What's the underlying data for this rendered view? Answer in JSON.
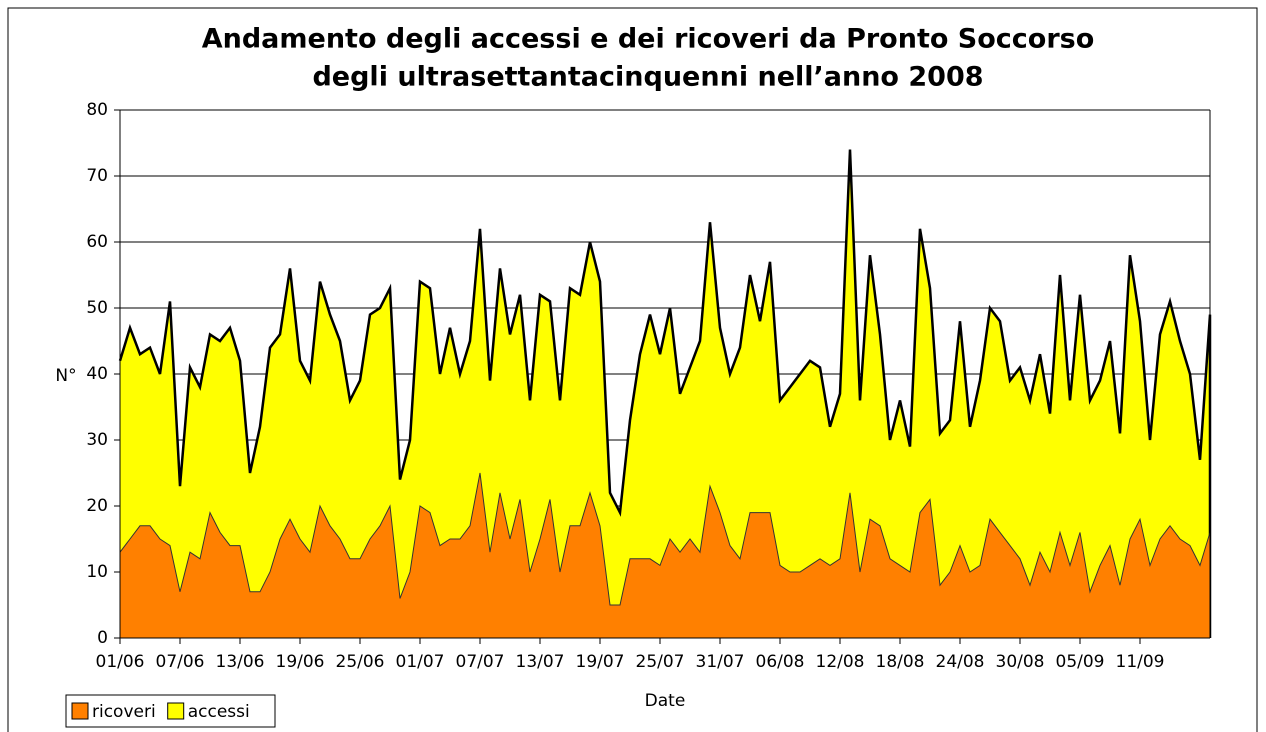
{
  "chart_data": {
    "type": "area",
    "title": "Andamento degli accessi e dei ricoveri da Pronto Soccorso",
    "subtitle": "degli ultrasettantacinquenni nell’anno 2008",
    "x_label": "Date",
    "y_label": "N°",
    "categories": [
      "01/06",
      null,
      null,
      null,
      null,
      null,
      "07/06",
      null,
      null,
      null,
      null,
      null,
      "13/06",
      null,
      null,
      null,
      null,
      null,
      "19/06",
      null,
      null,
      null,
      null,
      null,
      "25/06",
      null,
      null,
      null,
      null,
      null,
      "01/07",
      null,
      null,
      null,
      null,
      null,
      "07/07",
      null,
      null,
      null,
      null,
      null,
      "13/07",
      null,
      null,
      null,
      null,
      null,
      "19/07",
      null,
      null,
      null,
      null,
      null,
      "25/07",
      null,
      null,
      null,
      null,
      null,
      "31/07",
      null,
      null,
      null,
      null,
      null,
      "06/08",
      null,
      null,
      null,
      null,
      null,
      "12/08",
      null,
      null,
      null,
      null,
      null,
      "18/08",
      null,
      null,
      null,
      null,
      null,
      "24/08",
      null,
      null,
      null,
      null,
      null,
      "30/08",
      null,
      null,
      null,
      null,
      null,
      "05/09",
      null,
      null,
      null,
      null,
      null,
      "11/09",
      null,
      null,
      null,
      null,
      null,
      null,
      null
    ],
    "series": [
      {
        "name": "ricoveri",
        "color": "#ff8000",
        "values": [
          13,
          15,
          17,
          17,
          15,
          14,
          7,
          13,
          12,
          19,
          16,
          14,
          14,
          7,
          7,
          10,
          15,
          18,
          15,
          13,
          20,
          17,
          15,
          12,
          12,
          15,
          17,
          20,
          6,
          10,
          20,
          19,
          14,
          15,
          15,
          17,
          25,
          13,
          22,
          15,
          21,
          10,
          15,
          21,
          10,
          17,
          17,
          22,
          17,
          5,
          5,
          12,
          12,
          12,
          11,
          15,
          13,
          15,
          13,
          23,
          19,
          14,
          12,
          19,
          19,
          19,
          11,
          10,
          10,
          11,
          12,
          11,
          12,
          22,
          10,
          18,
          17,
          12,
          11,
          10,
          19,
          21,
          8,
          10,
          14,
          10,
          11,
          18,
          16,
          14,
          12,
          8,
          13,
          10,
          16,
          11,
          16,
          7,
          11,
          14,
          8,
          15,
          18,
          11,
          15,
          17,
          15,
          14,
          11,
          16
        ]
      },
      {
        "name": "accessi",
        "color": "#ffff00",
        "values": [
          42,
          47,
          43,
          44,
          40,
          51,
          23,
          41,
          38,
          46,
          45,
          47,
          42,
          25,
          32,
          44,
          46,
          56,
          42,
          39,
          54,
          49,
          45,
          36,
          39,
          49,
          50,
          53,
          24,
          30,
          54,
          53,
          40,
          47,
          40,
          45,
          62,
          39,
          56,
          46,
          52,
          36,
          52,
          51,
          36,
          53,
          52,
          60,
          54,
          22,
          19,
          33,
          43,
          49,
          43,
          50,
          37,
          41,
          45,
          63,
          47,
          40,
          44,
          55,
          48,
          57,
          36,
          38,
          40,
          42,
          41,
          32,
          37,
          74,
          36,
          58,
          46,
          30,
          36,
          29,
          62,
          53,
          31,
          33,
          48,
          32,
          39,
          50,
          48,
          39,
          41,
          36,
          43,
          34,
          55,
          36,
          52,
          36,
          39,
          45,
          31,
          58,
          48,
          30,
          46,
          51,
          45,
          40,
          27,
          49
        ]
      }
    ],
    "ylim": [
      0,
      80
    ],
    "yticks": [
      0,
      10,
      20,
      30,
      40,
      50,
      60,
      70,
      80
    ],
    "grid": true,
    "legend": "bottom-left"
  }
}
